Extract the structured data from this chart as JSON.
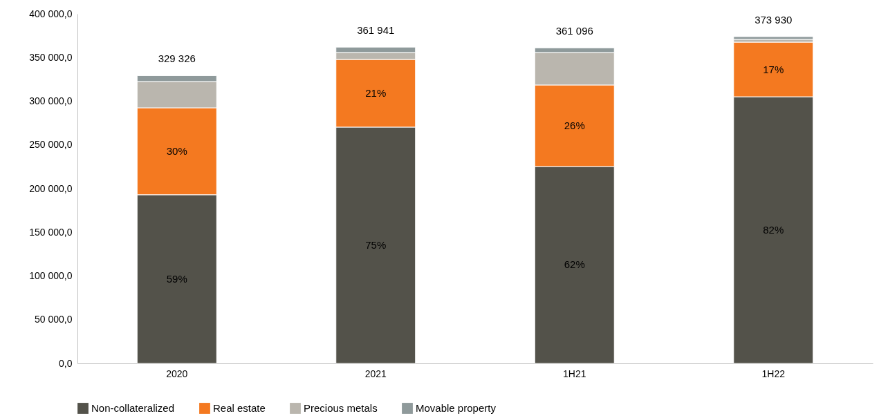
{
  "chart_data": {
    "type": "bar",
    "stacked": true,
    "categories": [
      "2020",
      "2021",
      "1H21",
      "1H22"
    ],
    "series": [
      {
        "name": "Non-collateralized",
        "color": "#53524a",
        "values": [
          193000,
          270400,
          225300,
          305100
        ]
      },
      {
        "name": "Real estate",
        "color": "#f47920",
        "values": [
          99500,
          77400,
          93300,
          62500
        ]
      },
      {
        "name": "Precious metals",
        "color": "#bab6ae",
        "values": [
          30000,
          7900,
          37100,
          3200
        ]
      },
      {
        "name": "Movable property",
        "color": "#8f9a9b",
        "values": [
          6826,
          6241,
          5396,
          3130
        ]
      }
    ],
    "annotations": [
      "59%",
      "75%",
      "62%",
      "82%",
      "30%",
      "21%",
      "26%",
      "17%"
    ],
    "totals": [
      "329 326",
      "361 941",
      "361 096",
      "373 930"
    ],
    "ylim": [
      0,
      400000
    ],
    "yticks": [
      {
        "value": 0,
        "label": "0,0"
      },
      {
        "value": 50000,
        "label": "50 000,0"
      },
      {
        "value": 100000,
        "label": "100 000,0"
      },
      {
        "value": 150000,
        "label": "150 000,0"
      },
      {
        "value": 200000,
        "label": "200 000,0"
      },
      {
        "value": 250000,
        "label": "250 000,0"
      },
      {
        "value": 300000,
        "label": "300 000,0"
      },
      {
        "value": 350000,
        "label": "350 000,0"
      },
      {
        "value": 400000,
        "label": "400 000,0"
      }
    ],
    "grid": false,
    "legend": "bottom"
  }
}
